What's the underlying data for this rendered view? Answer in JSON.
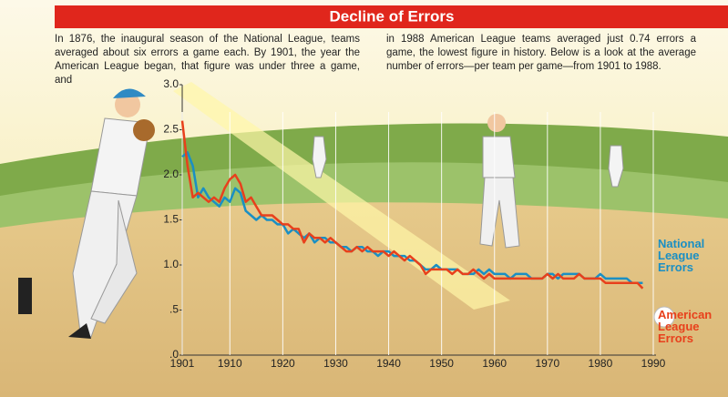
{
  "intro": [
    "In 1876, the inaugural season of the National League, teams averaged about six errors a game each. By 1901, the year the American League began, that figure was under three a game, and",
    "in 1988 American League teams averaged just 0.74 errors a game, the lowest figure in history. Below is a look at the average number of errors—per team per game—from 1901 to 1988."
  ],
  "chart_data": {
    "type": "line",
    "title": "Decline of Errors",
    "x": [
      1901,
      1902,
      1903,
      1904,
      1905,
      1906,
      1907,
      1908,
      1909,
      1910,
      1911,
      1912,
      1913,
      1914,
      1915,
      1916,
      1917,
      1918,
      1919,
      1920,
      1921,
      1922,
      1923,
      1924,
      1925,
      1926,
      1927,
      1928,
      1929,
      1930,
      1931,
      1932,
      1933,
      1934,
      1935,
      1936,
      1937,
      1938,
      1939,
      1940,
      1941,
      1942,
      1943,
      1944,
      1945,
      1946,
      1947,
      1948,
      1949,
      1950,
      1951,
      1952,
      1953,
      1954,
      1955,
      1956,
      1957,
      1958,
      1959,
      1960,
      1961,
      1962,
      1963,
      1964,
      1965,
      1966,
      1967,
      1968,
      1969,
      1970,
      1971,
      1972,
      1973,
      1974,
      1975,
      1976,
      1977,
      1978,
      1979,
      1980,
      1981,
      1982,
      1983,
      1984,
      1985,
      1986,
      1987,
      1988
    ],
    "series": [
      {
        "name": "National League Errors",
        "color": "#1a8fc4",
        "values": [
          2.2,
          2.25,
          2.1,
          1.75,
          1.85,
          1.75,
          1.7,
          1.65,
          1.75,
          1.7,
          1.85,
          1.8,
          1.6,
          1.55,
          1.5,
          1.55,
          1.5,
          1.5,
          1.45,
          1.45,
          1.35,
          1.4,
          1.35,
          1.3,
          1.35,
          1.25,
          1.3,
          1.3,
          1.25,
          1.25,
          1.2,
          1.2,
          1.15,
          1.2,
          1.2,
          1.15,
          1.15,
          1.1,
          1.15,
          1.15,
          1.1,
          1.1,
          1.1,
          1.05,
          1.05,
          1.0,
          0.95,
          0.95,
          1.0,
          0.95,
          0.95,
          0.95,
          0.95,
          0.9,
          0.9,
          0.9,
          0.95,
          0.9,
          0.95,
          0.9,
          0.9,
          0.9,
          0.85,
          0.9,
          0.9,
          0.9,
          0.85,
          0.85,
          0.85,
          0.9,
          0.9,
          0.85,
          0.9,
          0.9,
          0.9,
          0.9,
          0.85,
          0.85,
          0.85,
          0.9,
          0.85,
          0.85,
          0.85,
          0.85,
          0.85,
          0.8,
          0.8,
          0.8
        ]
      },
      {
        "name": "American League Errors",
        "color": "#e8401c",
        "values": [
          2.6,
          2.1,
          1.75,
          1.8,
          1.75,
          1.7,
          1.75,
          1.7,
          1.85,
          1.95,
          2.0,
          1.9,
          1.7,
          1.75,
          1.65,
          1.55,
          1.55,
          1.55,
          1.5,
          1.45,
          1.45,
          1.4,
          1.4,
          1.25,
          1.35,
          1.3,
          1.3,
          1.25,
          1.3,
          1.25,
          1.2,
          1.15,
          1.15,
          1.2,
          1.15,
          1.2,
          1.15,
          1.15,
          1.15,
          1.1,
          1.15,
          1.1,
          1.05,
          1.1,
          1.05,
          1.0,
          0.9,
          0.95,
          0.95,
          0.95,
          0.95,
          0.9,
          0.95,
          0.9,
          0.9,
          0.95,
          0.9,
          0.85,
          0.9,
          0.85,
          0.85,
          0.85,
          0.85,
          0.85,
          0.85,
          0.85,
          0.85,
          0.85,
          0.85,
          0.9,
          0.85,
          0.9,
          0.85,
          0.85,
          0.85,
          0.9,
          0.85,
          0.85,
          0.85,
          0.85,
          0.8,
          0.8,
          0.8,
          0.8,
          0.8,
          0.8,
          0.8,
          0.74
        ]
      }
    ],
    "xlim": [
      1901,
      1990
    ],
    "xticks": [
      1901,
      1910,
      1920,
      1930,
      1940,
      1950,
      1960,
      1970,
      1980,
      1990
    ],
    "ylim": [
      0,
      3
    ],
    "yticks": [
      {
        "value": 0,
        "label": ".0"
      },
      {
        "value": 0.5,
        "label": ".5"
      },
      {
        "value": 1,
        "label": "1.0"
      },
      1.5,
      {
        "value": 2,
        "label": "2.0"
      },
      2.5,
      {
        "value": 3,
        "label": "3.0"
      }
    ],
    "grid": true
  }
}
